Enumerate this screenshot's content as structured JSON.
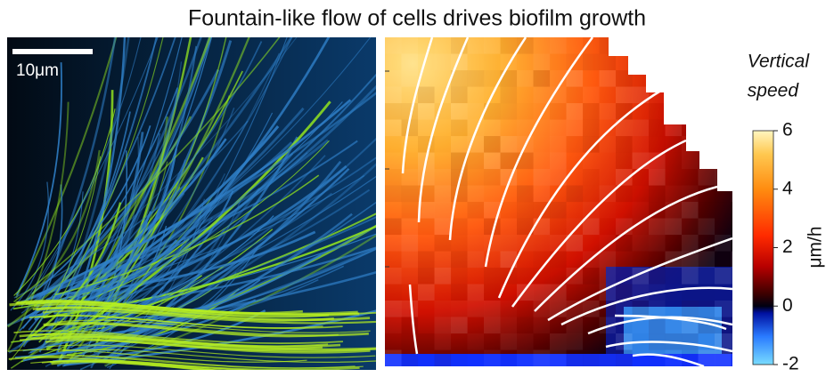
{
  "title": "Fountain-like flow of cells drives biofilm growth",
  "scale_bar": {
    "label": "10μm"
  },
  "colorbar": {
    "title_lines": [
      "Vertical",
      "speed"
    ],
    "unit": "μm/h",
    "lim": [
      -2,
      6
    ],
    "ticks": [
      6,
      4,
      2,
      0,
      -2
    ]
  }
}
